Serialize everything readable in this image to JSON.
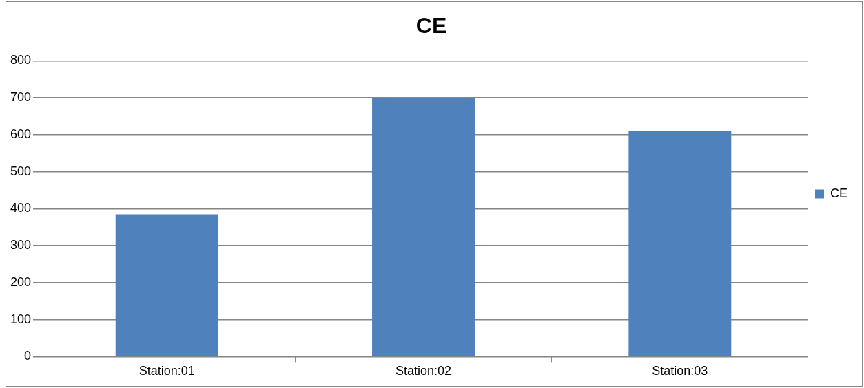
{
  "chart_data": {
    "type": "bar",
    "title": "CE",
    "categories": [
      "Station:01",
      "Station:02",
      "Station:03"
    ],
    "series": [
      {
        "name": "CE",
        "color": "#4f81bd",
        "values": [
          385,
          700,
          610
        ]
      }
    ],
    "ylim": [
      0,
      800
    ],
    "yticks": [
      0,
      100,
      200,
      300,
      400,
      500,
      600,
      700,
      800
    ],
    "grid": "y",
    "legend": "right"
  }
}
